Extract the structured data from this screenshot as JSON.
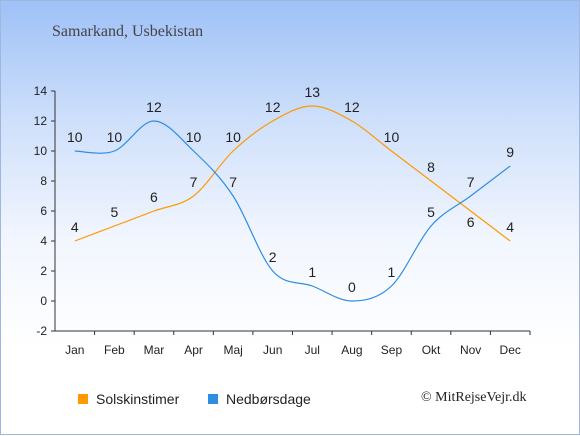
{
  "subtitle": "Samarkand, Usbekistan",
  "copyright": "© MitRejseVejr.dk",
  "chart_data": {
    "type": "line",
    "categories": [
      "Jan",
      "Feb",
      "Mar",
      "Apr",
      "Maj",
      "Jun",
      "Jul",
      "Aug",
      "Sep",
      "Okt",
      "Nov",
      "Dec"
    ],
    "series": [
      {
        "name": "Solskinstimer",
        "color": "#ff9900",
        "values": [
          4,
          5,
          6,
          7,
          10,
          12,
          13,
          12,
          10,
          8,
          6,
          4
        ]
      },
      {
        "name": "Nedbørsdage",
        "color": "#2f8ee2",
        "values": [
          10,
          10,
          12,
          10,
          7,
          2,
          1,
          0,
          1,
          5,
          7,
          9
        ]
      }
    ],
    "ylim": [
      -2,
      14
    ],
    "yticks": [
      -2,
      0,
      2,
      4,
      6,
      8,
      10,
      12,
      14
    ],
    "grid": false,
    "legend": "bottom-left"
  }
}
